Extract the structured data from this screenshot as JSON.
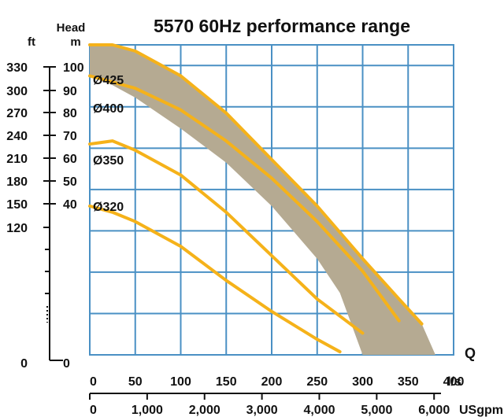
{
  "chart_data": {
    "type": "area",
    "title": "5570 60Hz performance range",
    "axes": {
      "head_m": {
        "label": "Head",
        "unit": "m",
        "ticks": [
          0,
          40,
          50,
          60,
          70,
          80,
          90,
          100
        ],
        "range": [
          0,
          100
        ]
      },
      "head_ft": {
        "unit": "ft",
        "ticks": [
          0,
          120,
          150,
          180,
          210,
          240,
          270,
          300,
          330
        ]
      },
      "flow_ls": {
        "label": "Q",
        "unit": "l/s",
        "ticks": [
          0,
          50,
          100,
          150,
          200,
          250,
          300,
          350,
          400
        ],
        "range": [
          0,
          400
        ]
      },
      "flow_usgpm": {
        "unit": "USgpm",
        "ticks": [
          "0",
          "1,000",
          "2,000",
          "3,000",
          "4,000",
          "5,000",
          "6,000"
        ],
        "tick_values": [
          0,
          1000,
          2000,
          3000,
          4000,
          5000,
          6000
        ]
      }
    },
    "grid": true,
    "range_area": {
      "upper": {
        "x": [
          0,
          25,
          50,
          100,
          150,
          200,
          250,
          300,
          340,
          365,
          380
        ],
        "y": [
          100,
          100,
          98,
          90,
          78,
          63,
          48,
          31,
          18,
          10,
          0
        ]
      },
      "lower": {
        "x": [
          275,
          250,
          200,
          150,
          100,
          50,
          25,
          0
        ],
        "y": [
          20,
          31,
          48,
          62,
          73,
          83,
          87,
          90
        ]
      }
    },
    "series": [
      {
        "name": "Ø425",
        "x": [
          0,
          25,
          50,
          100,
          150,
          200,
          250,
          300,
          340,
          365
        ],
        "y": [
          100,
          100,
          98,
          90,
          78,
          63,
          48,
          31,
          18,
          10
        ]
      },
      {
        "name": "Ø400",
        "x": [
          0,
          50,
          100,
          150,
          200,
          250,
          300,
          340
        ],
        "y": [
          90,
          86,
          79,
          69,
          57,
          43,
          27,
          11
        ]
      },
      {
        "name": "Ø350",
        "x": [
          0,
          25,
          50,
          100,
          150,
          200,
          250,
          300
        ],
        "y": [
          68,
          69,
          66,
          58,
          46,
          32,
          18,
          7
        ]
      },
      {
        "name": "Ø320",
        "x": [
          0,
          25,
          50,
          100,
          150,
          200,
          250,
          275
        ],
        "y": [
          48,
          46,
          43,
          35,
          24,
          14,
          5,
          1
        ]
      }
    ],
    "colors": {
      "fill": "#b5aa92",
      "curve": "#f5b21a",
      "grid": "#4a90c4",
      "text": "#111111"
    }
  }
}
